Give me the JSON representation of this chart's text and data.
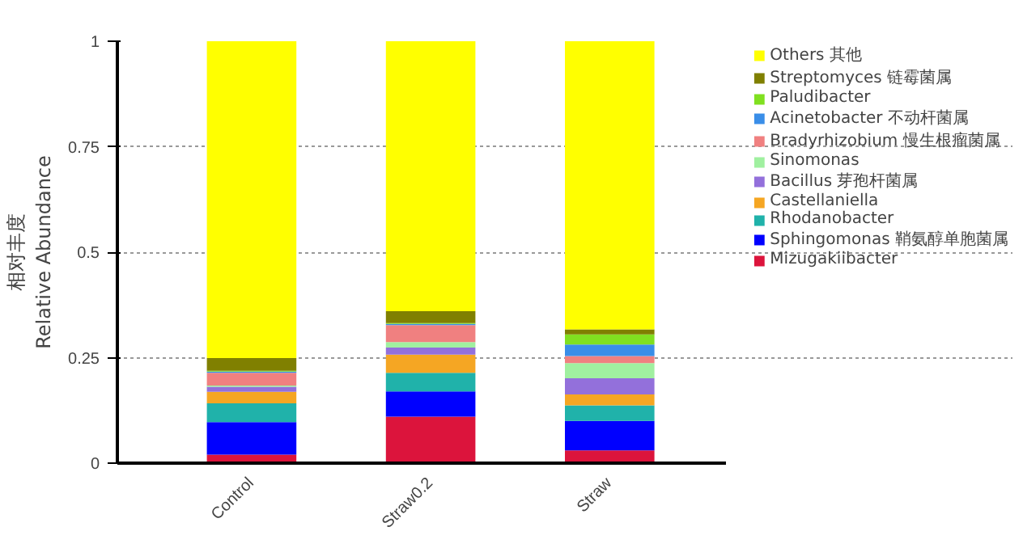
{
  "chart_data": {
    "type": "bar",
    "stacked": true,
    "ylabel": "相对丰度\nRelative Abundance",
    "categories": [
      "Control",
      "Straw0.2",
      "Straw"
    ],
    "series": [
      {
        "name": "Mizugakiibacter",
        "color": "#dc143c",
        "values": [
          0.02,
          0.11,
          0.03
        ]
      },
      {
        "name": "Sphingomonas 鞘氨醇单胞菌属",
        "color": "#0000ff",
        "values": [
          0.077,
          0.06,
          0.07
        ]
      },
      {
        "name": "Rhodanobacter",
        "color": "#20b2aa",
        "values": [
          0.045,
          0.044,
          0.037
        ]
      },
      {
        "name": "Castellaniella",
        "color": "#f5a623",
        "values": [
          0.027,
          0.043,
          0.026
        ]
      },
      {
        "name": "Bacillus 芽孢杆菌属",
        "color": "#9370db",
        "values": [
          0.012,
          0.017,
          0.038
        ]
      },
      {
        "name": "Sinomonas",
        "color": "#a0f0a0",
        "values": [
          0.003,
          0.013,
          0.036
        ]
      },
      {
        "name": "Bradyrhizobium 慢生根瘤菌属",
        "color": "#f08080",
        "values": [
          0.03,
          0.04,
          0.017
        ]
      },
      {
        "name": "Acinetobacter 不动杆菌属",
        "color": "#3a8ee8",
        "values": [
          0.003,
          0.003,
          0.027
        ]
      },
      {
        "name": "Paludibacter",
        "color": "#80e020",
        "values": [
          0.002,
          0.002,
          0.024
        ]
      },
      {
        "name": "Streptomyces 链霉菌属",
        "color": "#808000",
        "values": [
          0.03,
          0.028,
          0.012
        ]
      },
      {
        "name": "Others 其他",
        "color": "#ffff00",
        "values": [
          0.751,
          0.64,
          0.683
        ]
      }
    ],
    "ylim": [
      0,
      1
    ],
    "yticks": [
      0,
      0.25,
      0.5,
      0.75,
      1
    ],
    "grid": "y",
    "legend": "right"
  }
}
